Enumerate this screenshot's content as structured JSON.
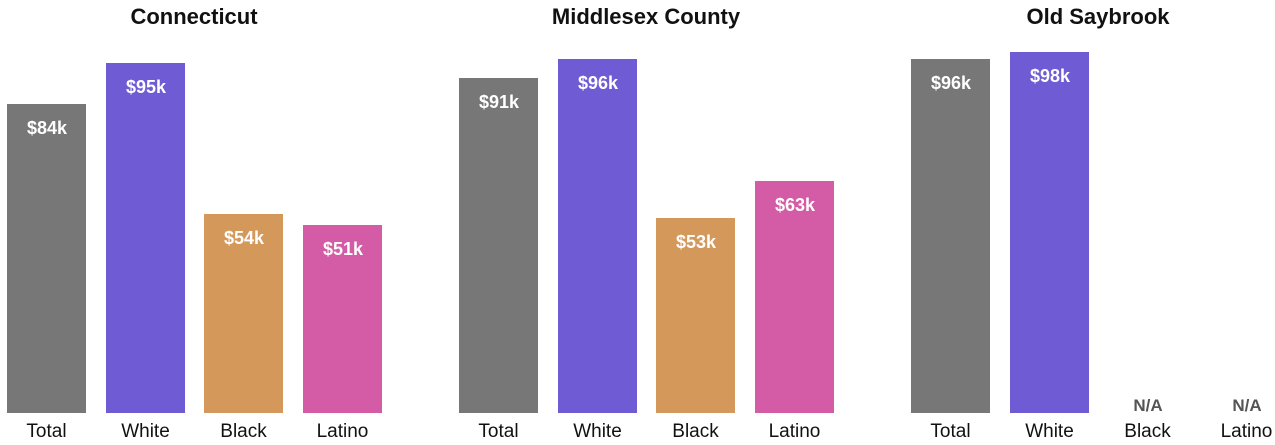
{
  "colors": {
    "Total": "#777777",
    "White": "#6f5bd3",
    "Black": "#d4985a",
    "Latino": "#d45ba5"
  },
  "chart_data": [
    {
      "type": "bar",
      "title": "Connecticut",
      "categories": [
        "Total",
        "White",
        "Black",
        "Latino"
      ],
      "values": [
        84,
        95,
        54,
        51
      ],
      "data_labels": [
        "$84k",
        "$95k",
        "$54k",
        "$51k"
      ],
      "ylim": [
        0,
        98
      ]
    },
    {
      "type": "bar",
      "title": "Middlesex County",
      "categories": [
        "Total",
        "White",
        "Black",
        "Latino"
      ],
      "values": [
        91,
        96,
        53,
        63
      ],
      "data_labels": [
        "$91k",
        "$96k",
        "$53k",
        "$63k"
      ],
      "ylim": [
        0,
        98
      ]
    },
    {
      "type": "bar",
      "title": "Old Saybrook",
      "categories": [
        "Total",
        "White",
        "Black",
        "Latino"
      ],
      "values": [
        96,
        98,
        null,
        null
      ],
      "data_labels": [
        "$96k",
        "$98k",
        "N/A",
        "N/A"
      ],
      "ylim": [
        0,
        98
      ]
    }
  ]
}
